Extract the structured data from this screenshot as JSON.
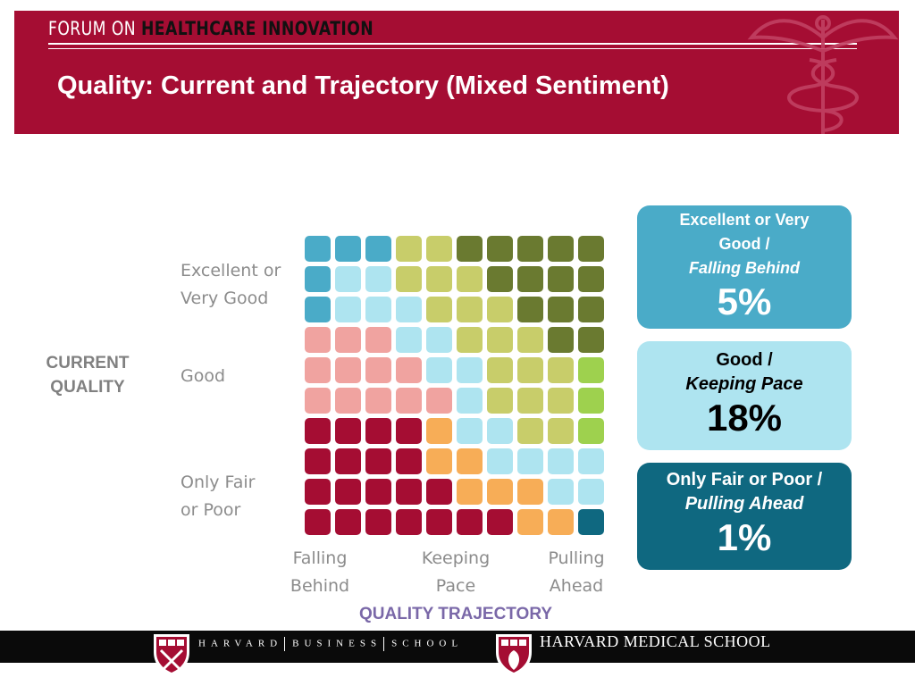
{
  "header": {
    "forum_prefix": "FORUM ON ",
    "forum_emphasis": "HEALTHCARE INNOVATION",
    "title": "Quality: Current and Trajectory (Mixed Sentiment)"
  },
  "axes": {
    "y_title": "CURRENT\nQUALITY",
    "x_title": "QUALITY TRAJECTORY",
    "rows": [
      "Excellent or\nVery Good",
      "Good",
      "Only Fair\nor Poor"
    ],
    "cols": [
      "Falling\nBehind",
      "Keeping\nPace",
      "Pulling\nAhead"
    ]
  },
  "colors": {
    "header_bg": "#a50d33",
    "c1": "#4aabc8",
    "c2": "#aee4f0",
    "c3": "#0f6880",
    "p1": "#f0a3a0",
    "p2": "#c8cd6a",
    "p3": "#f7ad57",
    "d2": "#6a7a30",
    "d3": "#9ed14e",
    "r1": "#a50d33",
    "r2": "#aee4f0",
    "r3": "#0f6880"
  },
  "grid": [
    "AAADDEEEEE",
    "ABBDDDEEEE",
    "ABBBDDDEEE",
    "PPPBBDDDEE",
    "PPPPBBDDDL",
    "PPPPPBDDDL",
    "RRRROBBDDL",
    "RRRROOBBBB",
    "RRRRROOOBB",
    "RRRRRRROOT"
  ],
  "callouts": [
    {
      "line1": "Excellent or Very",
      "line2": "Good /",
      "line3": "Falling Behind",
      "value": "5%"
    },
    {
      "line1": "Good /",
      "line2": "Keeping Pace",
      "value": "18%"
    },
    {
      "line1": "Only Fair or Poor /",
      "line2": "Pulling Ahead",
      "value": "1%"
    }
  ],
  "footer": {
    "hbs": [
      "HARVARD",
      "BUSINESS",
      "SCHOOL"
    ],
    "hms": "HARVARD MEDICAL SCHOOL"
  }
}
